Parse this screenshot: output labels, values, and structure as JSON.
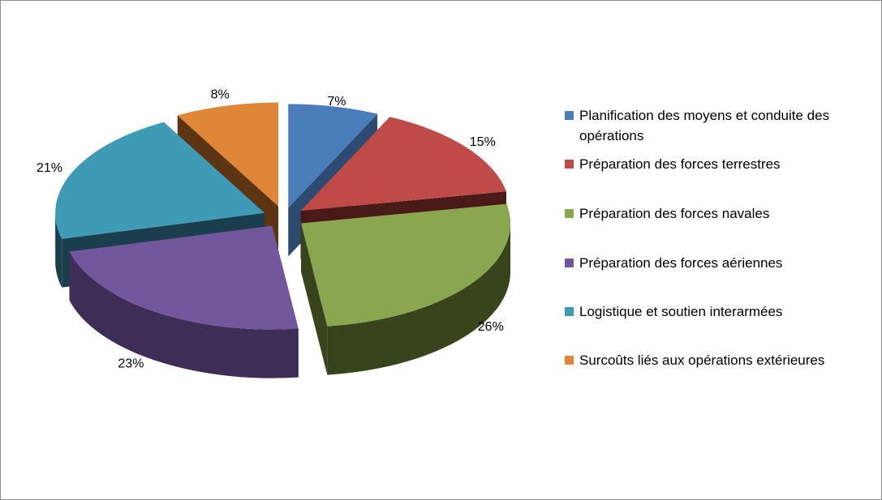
{
  "chart_data": {
    "type": "pie",
    "style": "3d-exploded",
    "legend_position": "right",
    "slices": [
      {
        "label": "Planification des moyens et conduite des opérations",
        "value": 7,
        "value_label": "7%",
        "color": "#4a7ebb",
        "side_color": "#2c4b70"
      },
      {
        "label": "Préparation des forces terrestres",
        "value": 15,
        "value_label": "15%",
        "color": "#be4b48",
        "side_color": "#4a1a19"
      },
      {
        "label": "Préparation des forces navales",
        "value": 26,
        "value_label": "26%",
        "color": "#8aa64e",
        "side_color": "#38451c"
      },
      {
        "label": "Préparation des forces aériennes",
        "value": 23,
        "value_label": "23%",
        "color": "#73579c",
        "side_color": "#3e2d57"
      },
      {
        "label": "Logistique et soutien interarmées",
        "value": 21,
        "value_label": "21%",
        "color": "#3e9ab5",
        "side_color": "#1a3e4b"
      },
      {
        "label": "Surcoûts liés aux opérations extérieures",
        "value": 8,
        "value_label": "8%",
        "color": "#e08639",
        "side_color": "#5e3513"
      }
    ]
  }
}
